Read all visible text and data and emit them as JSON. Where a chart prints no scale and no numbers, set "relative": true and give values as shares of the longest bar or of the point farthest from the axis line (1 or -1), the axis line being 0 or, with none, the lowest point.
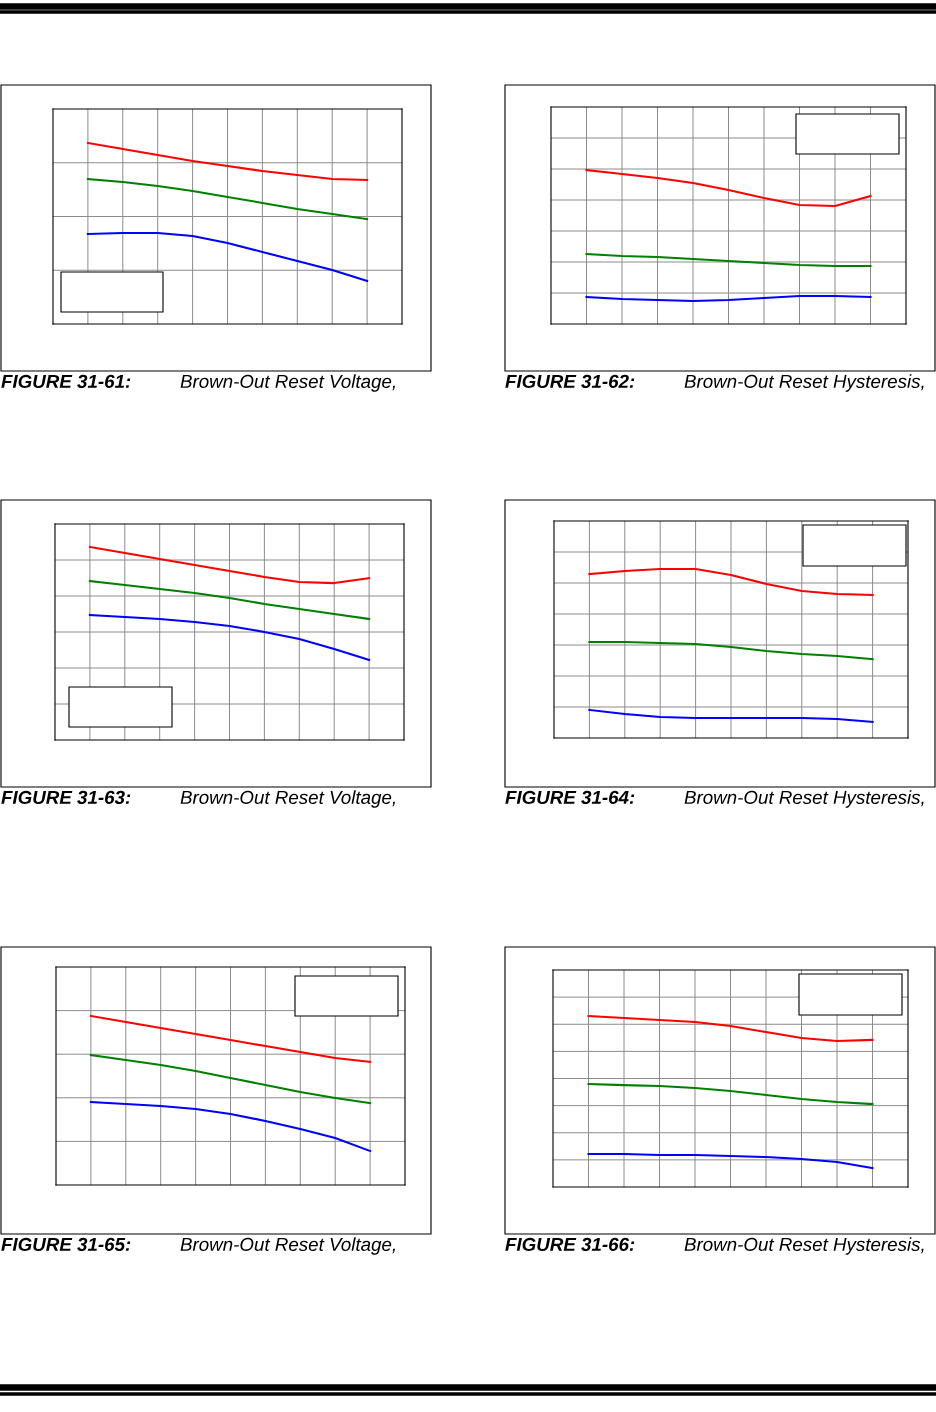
{
  "chart_data": [
    {
      "type": "line",
      "title": "FIGURE 31-61:",
      "subtitle": "Brown-Out Reset Voltage,",
      "relative": true,
      "grid": true,
      "legend": false,
      "categories": [
        null,
        null,
        null,
        null,
        null,
        null,
        null,
        null,
        null
      ],
      "series": [
        {
          "color": "#ff0000",
          "values": [
            1,
            0.967,
            0.934,
            0.901,
            0.873,
            0.845,
            0.823,
            0.801,
            0.796
          ]
        },
        {
          "color": "#008000",
          "values": [
            0.801,
            0.785,
            0.762,
            0.735,
            0.702,
            0.669,
            0.635,
            0.608,
            0.58
          ]
        },
        {
          "color": "#0000ff",
          "values": [
            0.497,
            0.503,
            0.503,
            0.486,
            0.448,
            0.398,
            0.348,
            0.298,
            0.238
          ]
        }
      ]
    },
    {
      "type": "line",
      "title": "FIGURE 31-62:",
      "subtitle": "Brown-Out Reset Hysteresis,",
      "relative": true,
      "grid": true,
      "legend": false,
      "categories": [
        null,
        null,
        null,
        null,
        null,
        null,
        null,
        null,
        null
      ],
      "series": [
        {
          "color": "#ff0000",
          "values": [
            1,
            0.974,
            0.948,
            0.916,
            0.87,
            0.818,
            0.773,
            0.766,
            0.831
          ]
        },
        {
          "color": "#008000",
          "values": [
            0.455,
            0.442,
            0.435,
            0.422,
            0.409,
            0.396,
            0.383,
            0.377,
            0.377
          ]
        },
        {
          "color": "#0000ff",
          "values": [
            0.175,
            0.162,
            0.156,
            0.149,
            0.156,
            0.169,
            0.182,
            0.182,
            0.175
          ]
        }
      ]
    },
    {
      "type": "line",
      "title": "FIGURE 31-63:",
      "subtitle": "Brown-Out Reset Voltage,",
      "relative": true,
      "grid": true,
      "legend": false,
      "categories": [
        null,
        null,
        null,
        null,
        null,
        null,
        null,
        null,
        null
      ],
      "series": [
        {
          "color": "#ff0000",
          "values": [
            1,
            0.969,
            0.938,
            0.907,
            0.876,
            0.845,
            0.819,
            0.813,
            0.839
          ]
        },
        {
          "color": "#008000",
          "values": [
            0.824,
            0.803,
            0.782,
            0.762,
            0.736,
            0.705,
            0.679,
            0.653,
            0.627
          ]
        },
        {
          "color": "#0000ff",
          "values": [
            0.648,
            0.637,
            0.627,
            0.611,
            0.591,
            0.56,
            0.523,
            0.472,
            0.415
          ]
        }
      ]
    },
    {
      "type": "line",
      "title": "FIGURE 31-64:",
      "subtitle": "Brown-Out Reset Hysteresis,",
      "relative": true,
      "grid": true,
      "legend": false,
      "categories": [
        null,
        null,
        null,
        null,
        null,
        null,
        null,
        null,
        null
      ],
      "series": [
        {
          "color": "#ff0000",
          "values": [
            0.97,
            0.988,
            1,
            1,
            0.964,
            0.911,
            0.87,
            0.852,
            0.846
          ]
        },
        {
          "color": "#008000",
          "values": [
            0.568,
            0.568,
            0.562,
            0.556,
            0.538,
            0.515,
            0.497,
            0.485,
            0.467
          ]
        },
        {
          "color": "#0000ff",
          "values": [
            0.166,
            0.142,
            0.124,
            0.118,
            0.118,
            0.118,
            0.118,
            0.112,
            0.095
          ]
        }
      ]
    },
    {
      "type": "line",
      "title": "FIGURE 31-65:",
      "subtitle": "Brown-Out Reset Voltage,",
      "relative": true,
      "grid": true,
      "legend": false,
      "categories": [
        null,
        null,
        null,
        null,
        null,
        null,
        null,
        null,
        null
      ],
      "series": [
        {
          "color": "#ff0000",
          "values": [
            1,
            0.964,
            0.929,
            0.893,
            0.858,
            0.822,
            0.787,
            0.751,
            0.728
          ]
        },
        {
          "color": "#008000",
          "values": [
            0.769,
            0.74,
            0.71,
            0.675,
            0.633,
            0.592,
            0.55,
            0.515,
            0.485
          ]
        },
        {
          "color": "#0000ff",
          "values": [
            0.491,
            0.479,
            0.467,
            0.45,
            0.42,
            0.379,
            0.331,
            0.278,
            0.201
          ]
        }
      ]
    },
    {
      "type": "line",
      "title": "FIGURE 31-66:",
      "subtitle": "Brown-Out Reset Hysteresis,",
      "relative": true,
      "grid": true,
      "legend": false,
      "categories": [
        null,
        null,
        null,
        null,
        null,
        null,
        null,
        null,
        null
      ],
      "series": [
        {
          "color": "#ff0000",
          "values": [
            1,
            0.988,
            0.977,
            0.965,
            0.942,
            0.906,
            0.871,
            0.854,
            0.86
          ]
        },
        {
          "color": "#008000",
          "values": [
            0.602,
            0.596,
            0.591,
            0.579,
            0.561,
            0.538,
            0.515,
            0.497,
            0.485
          ]
        },
        {
          "color": "#0000ff",
          "values": [
            0.193,
            0.193,
            0.187,
            0.187,
            0.181,
            0.175,
            0.164,
            0.146,
            0.111
          ]
        }
      ]
    }
  ]
}
